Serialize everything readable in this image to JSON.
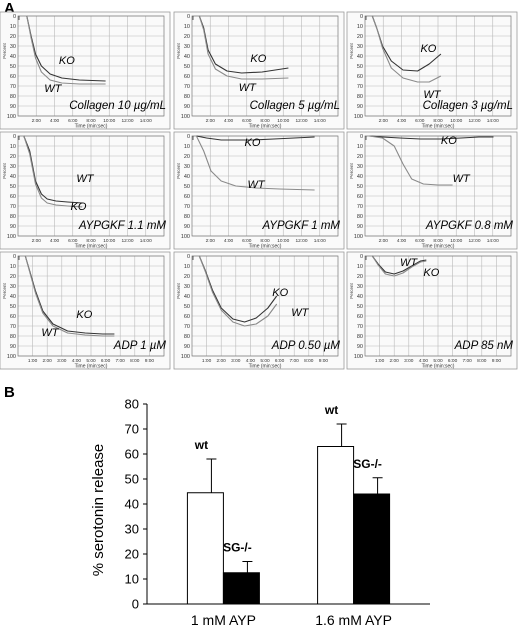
{
  "panel_labels": {
    "a": "A",
    "b": "B"
  },
  "colors": {
    "grid": "#b9b9b9",
    "trace_dark": "#333333",
    "trace_light": "#8a8a8a",
    "wt_bar": "#ffffff",
    "sg_bar": "#000000"
  },
  "aggregometry": {
    "yticks": [
      "0",
      "10",
      "20",
      "30",
      "40",
      "50",
      "60",
      "70",
      "80",
      "90",
      "100"
    ],
    "ylabel": "Percent",
    "xlabel": "Time (min:sec)",
    "rows": [
      {
        "xticks": [
          "2:00",
          "4:00",
          "6:00",
          "8:00",
          "10:00",
          "12:00",
          "14:00"
        ],
        "panels": [
          {
            "condition": "Collagen 10 µg/mL",
            "traces": [
              {
                "label": "KO",
                "t": [
                  0.06,
                  0.09,
                  0.12,
                  0.16,
                  0.22,
                  0.3,
                  0.42,
                  0.6
                ],
                "v": [
                  0,
                  20,
                  38,
                  50,
                  58,
                  62,
                  64,
                  65
                ]
              },
              {
                "label": "WT",
                "t": [
                  0.06,
                  0.09,
                  0.12,
                  0.16,
                  0.22,
                  0.3,
                  0.42,
                  0.6
                ],
                "v": [
                  0,
                  22,
                  42,
                  56,
                  64,
                  67,
                  68,
                  68
                ]
              }
            ]
          },
          {
            "condition": "Collagen 5 µg/mL",
            "traces": [
              {
                "label": "KO",
                "t": [
                  0.05,
                  0.08,
                  0.11,
                  0.16,
                  0.24,
                  0.34,
                  0.48,
                  0.66
                ],
                "v": [
                  0,
                  12,
                  34,
                  48,
                  55,
                  57,
                  56,
                  52
                ]
              },
              {
                "label": "WT",
                "t": [
                  0.05,
                  0.08,
                  0.11,
                  0.16,
                  0.24,
                  0.34,
                  0.48,
                  0.66
                ],
                "v": [
                  0,
                  14,
                  38,
                  53,
                  60,
                  63,
                  63,
                  62
                ]
              }
            ]
          },
          {
            "condition": "Collagen 3 µg/mL",
            "traces": [
              {
                "label": "KO",
                "t": [
                  0.05,
                  0.08,
                  0.12,
                  0.18,
                  0.26,
                  0.36,
                  0.44,
                  0.52
                ],
                "v": [
                  0,
                  12,
                  30,
                  45,
                  54,
                  55,
                  48,
                  38
                ]
              },
              {
                "label": "WT",
                "t": [
                  0.05,
                  0.08,
                  0.12,
                  0.18,
                  0.26,
                  0.36,
                  0.44,
                  0.52
                ],
                "v": [
                  0,
                  12,
                  32,
                  52,
                  62,
                  66,
                  66,
                  60
                ]
              }
            ]
          }
        ]
      },
      {
        "xticks": [
          "2:00",
          "4:00",
          "6:00",
          "8:00",
          "10:00",
          "12:00",
          "14:00"
        ],
        "panels": [
          {
            "condition": "AYPGKF 1.1 mM",
            "traces": [
              {
                "label": "WT",
                "t": [
                  0.04,
                  0.08,
                  0.12,
                  0.16,
                  0.2,
                  0.26,
                  0.34,
                  0.44
                ],
                "v": [
                  0,
                  15,
                  45,
                  58,
                  63,
                  65,
                  66,
                  67
                ]
              },
              {
                "label": "KO",
                "t": [
                  0.04,
                  0.08,
                  0.12,
                  0.16,
                  0.2,
                  0.26,
                  0.34,
                  0.44
                ],
                "v": [
                  0,
                  18,
                  48,
                  62,
                  67,
                  69,
                  70,
                  71
                ]
              }
            ]
          },
          {
            "condition": "AYPGKF 1 mM",
            "traces": [
              {
                "label": "KO",
                "t": [
                  0.03,
                  0.1,
                  0.2,
                  0.3,
                  0.42,
                  0.56,
                  0.7,
                  0.84
                ],
                "v": [
                  0,
                  2,
                  4,
                  4,
                  4,
                  3,
                  2,
                  1
                ]
              },
              {
                "label": "WT",
                "t": [
                  0.03,
                  0.08,
                  0.13,
                  0.2,
                  0.3,
                  0.44,
                  0.6,
                  0.84
                ],
                "v": [
                  0,
                  15,
                  35,
                  45,
                  50,
                  52,
                  53,
                  54
                ]
              }
            ]
          },
          {
            "condition": "AYPGKF 0.8 mM",
            "traces": [
              {
                "label": "KO",
                "t": [
                  0.03,
                  0.12,
                  0.24,
                  0.38,
                  0.52,
                  0.66,
                  0.78,
                  0.88
                ],
                "v": [
                  0,
                  1,
                  2,
                  3,
                  3,
                  2,
                  1,
                  1
                ]
              },
              {
                "label": "WT",
                "t": [
                  0.03,
                  0.12,
                  0.2,
                  0.26,
                  0.32,
                  0.4,
                  0.5,
                  0.6
                ],
                "v": [
                  0,
                  2,
                  10,
                  28,
                  43,
                  48,
                  49,
                  49
                ]
              }
            ]
          }
        ]
      },
      {
        "xticks": [
          "1:00",
          "2:00",
          "3:00",
          "4:00",
          "5:00",
          "6:00",
          "7:00",
          "8:00",
          "9:00"
        ],
        "panels": [
          {
            "condition": "ADP 1 µM",
            "traces": [
              {
                "label": "KO",
                "t": [
                  0.05,
                  0.08,
                  0.12,
                  0.17,
                  0.24,
                  0.34,
                  0.46,
                  0.58,
                  0.66
                ],
                "v": [
                  0,
                  15,
                  35,
                  55,
                  68,
                  75,
                  77,
                  78,
                  78
                ]
              },
              {
                "label": "WT",
                "t": [
                  0.05,
                  0.08,
                  0.12,
                  0.17,
                  0.24,
                  0.34,
                  0.46,
                  0.58,
                  0.66
                ],
                "v": [
                  0,
                  16,
                  37,
                  57,
                  70,
                  77,
                  79,
                  80,
                  80
                ]
              }
            ]
          },
          {
            "condition": "ADP 0.50 µM",
            "traces": [
              {
                "label": "KO",
                "t": [
                  0.05,
                  0.09,
                  0.14,
                  0.2,
                  0.28,
                  0.36,
                  0.44,
                  0.52,
                  0.58
                ],
                "v": [
                  0,
                  14,
                  34,
                  52,
                  63,
                  66,
                  62,
                  52,
                  40
                ]
              },
              {
                "label": "WT",
                "t": [
                  0.05,
                  0.09,
                  0.14,
                  0.2,
                  0.28,
                  0.36,
                  0.44,
                  0.52,
                  0.58
                ],
                "v": [
                  0,
                  15,
                  36,
                  54,
                  66,
                  70,
                  68,
                  60,
                  48
                ]
              }
            ]
          },
          {
            "condition": "ADP 85 nM",
            "traces": [
              {
                "label": "WT",
                "t": [
                  0.05,
                  0.09,
                  0.14,
                  0.2,
                  0.26,
                  0.32,
                  0.38,
                  0.42
                ],
                "v": [
                  0,
                  8,
                  16,
                  18,
                  15,
                  10,
                  5,
                  4
                ]
              },
              {
                "label": "KO",
                "t": [
                  0.05,
                  0.09,
                  0.14,
                  0.2,
                  0.26,
                  0.32,
                  0.38,
                  0.42
                ],
                "v": [
                  0,
                  9,
                  18,
                  20,
                  17,
                  11,
                  6,
                  5
                ]
              }
            ]
          }
        ]
      }
    ]
  },
  "chart_data": {
    "type": "bar",
    "categories": [
      "1 mM AYP",
      "1.6 mM AYP"
    ],
    "ylabel": "% serotonin release",
    "ylim": [
      0,
      80
    ],
    "yticks": [
      "0",
      "10",
      "20",
      "30",
      "40",
      "50",
      "60",
      "70",
      "80"
    ],
    "series": [
      {
        "name": "wt",
        "values": [
          44.5,
          63
        ],
        "errors": [
          13.5,
          9
        ],
        "color": "#ffffff",
        "labels": [
          "wt",
          "wt"
        ]
      },
      {
        "name": "SG-/-",
        "values": [
          12.5,
          44
        ],
        "errors": [
          4.5,
          6.5
        ],
        "color": "#000000",
        "labels": [
          "SG-/-",
          "SG-/-"
        ]
      }
    ],
    "grid": false,
    "legend": "none"
  }
}
